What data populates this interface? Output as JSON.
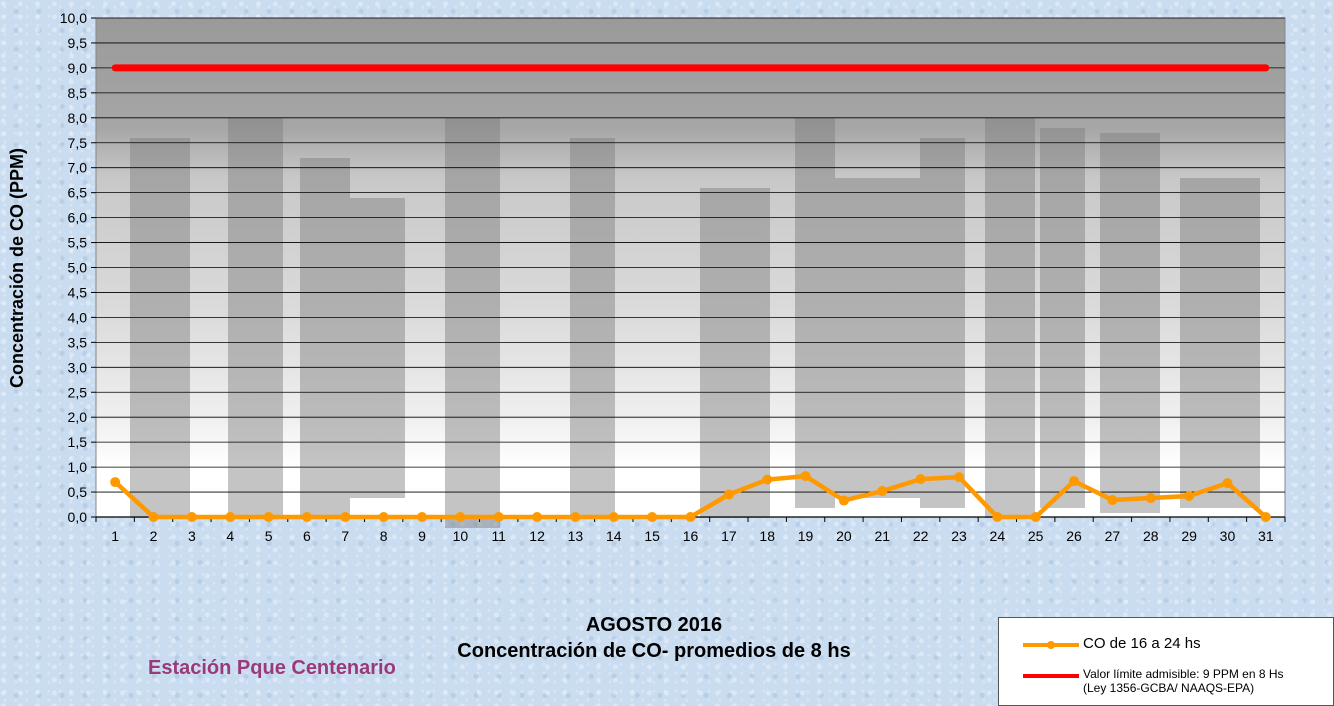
{
  "chart_data": {
    "type": "line",
    "title": [
      "AGOSTO 2016",
      "Concentración de CO- promedios de 8 hs"
    ],
    "ylabel": "Concentración de CO (PPM)",
    "xlabel": "",
    "ylim": [
      0,
      10
    ],
    "y_tick_step": 0.5,
    "y_tick_decimal_separator": ",",
    "grid": true,
    "categories": [
      "1",
      "2",
      "3",
      "4",
      "5",
      "6",
      "7",
      "8",
      "9",
      "10",
      "11",
      "12",
      "13",
      "14",
      "15",
      "16",
      "17",
      "18",
      "19",
      "20",
      "21",
      "22",
      "23",
      "24",
      "25",
      "26",
      "27",
      "28",
      "29",
      "30",
      "31"
    ],
    "series": [
      {
        "name": "CO de 16 a 24 hs",
        "color": "#ff9900",
        "marker": "circle",
        "values": [
          0.7,
          0,
          0,
          0,
          0,
          0,
          0,
          0,
          0,
          0,
          0,
          0,
          0,
          0,
          0,
          0,
          0.45,
          0.75,
          0.82,
          0.33,
          0.52,
          0.76,
          0.8,
          0,
          0,
          0.72,
          0.34,
          0.38,
          0.42,
          0.68,
          0
        ]
      },
      {
        "name": "Valor límite admisible: 9 PPM en 8 Hs (Ley 1356-GCBA/ NAAQS-EPA)",
        "color": "#ff0000",
        "marker": "none",
        "values": [
          9,
          9,
          9,
          9,
          9,
          9,
          9,
          9,
          9,
          9,
          9,
          9,
          9,
          9,
          9,
          9,
          9,
          9,
          9,
          9,
          9,
          9,
          9,
          9,
          9,
          9,
          9,
          9,
          9,
          9,
          9
        ]
      }
    ],
    "legend": {
      "placement": "bottom-right",
      "entries": [
        {
          "label": "CO de 16 a 24 hs",
          "color": "#ff9900",
          "marker": "circle"
        },
        {
          "label_line1": "Valor límite admisible: 9 PPM en 8 Hs",
          "label_line2": "(Ley 1356-GCBA/ NAAQS-EPA)",
          "color": "#ff0000"
        }
      ]
    }
  },
  "title_lines": [
    "AGOSTO 2016",
    "Concentración de CO- promedios de 8 hs"
  ],
  "station": "Estación Pque Centenario"
}
